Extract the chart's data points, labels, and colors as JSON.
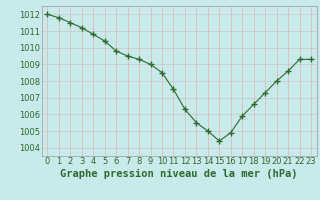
{
  "hours": [
    0,
    1,
    2,
    3,
    4,
    5,
    6,
    7,
    8,
    9,
    10,
    11,
    12,
    13,
    14,
    15,
    16,
    17,
    18,
    19,
    20,
    21,
    22,
    23
  ],
  "pressure": [
    1012.0,
    1011.8,
    1011.5,
    1011.2,
    1010.8,
    1010.4,
    1009.8,
    1009.5,
    1009.3,
    1009.0,
    1008.5,
    1007.5,
    1006.3,
    1005.5,
    1005.0,
    1004.4,
    1004.9,
    1005.9,
    1006.6,
    1007.3,
    1008.0,
    1008.6,
    1009.3,
    1009.3
  ],
  "line_color": "#2d6a2d",
  "marker": "+",
  "marker_size": 4,
  "marker_color": "#2d6a2d",
  "bg_color": "#c8eaea",
  "grid_color_v": "#e8b0b0",
  "grid_color_h": "#c8c8c8",
  "ylim": [
    1003.5,
    1012.5
  ],
  "yticks": [
    1004,
    1005,
    1006,
    1007,
    1008,
    1009,
    1010,
    1011,
    1012
  ],
  "xticks": [
    0,
    1,
    2,
    3,
    4,
    5,
    6,
    7,
    8,
    9,
    10,
    11,
    12,
    13,
    14,
    15,
    16,
    17,
    18,
    19,
    20,
    21,
    22,
    23
  ],
  "xlabel": "Graphe pression niveau de la mer (hPa)",
  "xlabel_fontsize": 7.5,
  "tick_fontsize": 6,
  "tick_color": "#2d6a2d",
  "label_color": "#2d6a2d",
  "linewidth": 0.8,
  "markeredgewidth": 1.0
}
